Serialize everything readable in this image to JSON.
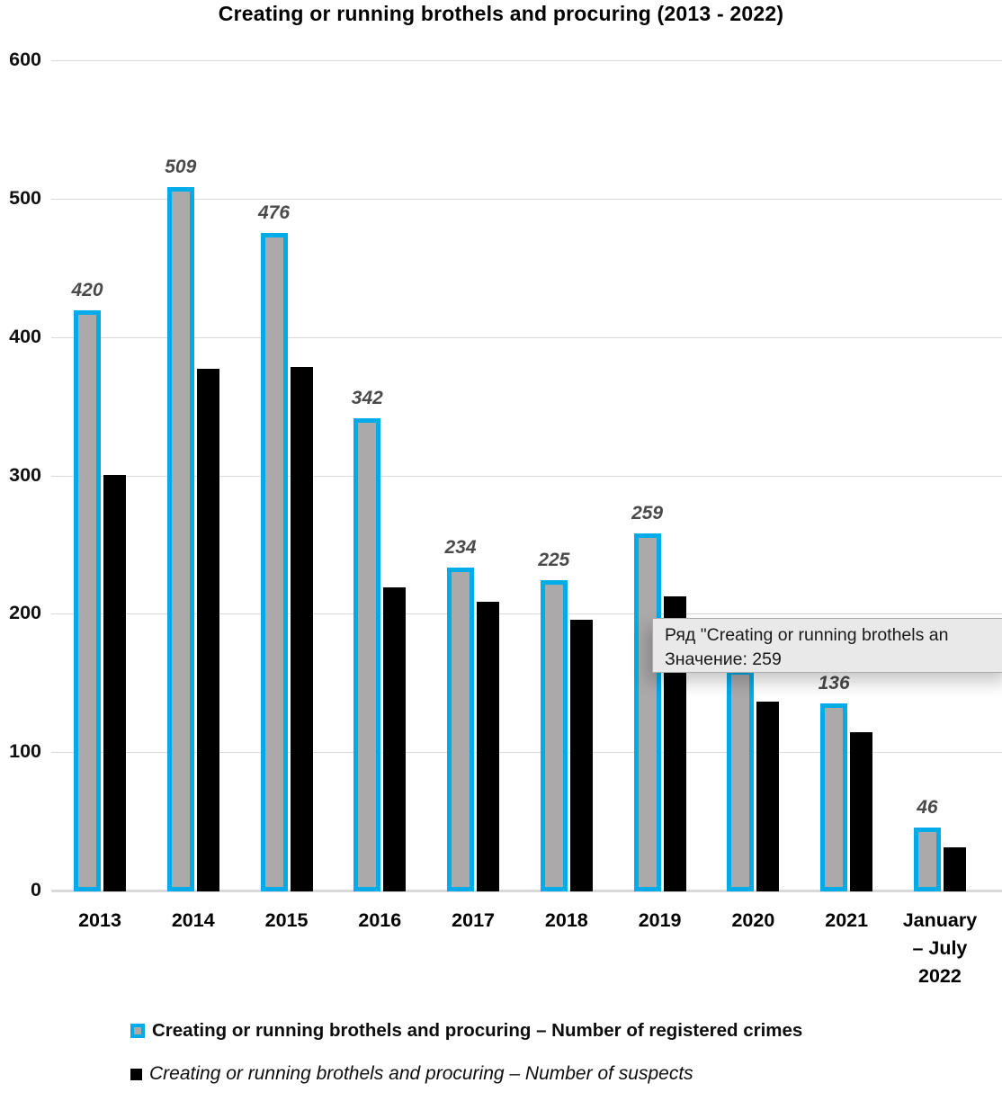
{
  "chart_data": {
    "type": "bar",
    "title": "Creating or running brothels and procuring (2013 - 2022)",
    "categories": [
      "2013",
      "2014",
      "2015",
      "2016",
      "2017",
      "2018",
      "2019",
      "2020",
      "2021",
      "January – July 2022"
    ],
    "xtick_labels": [
      "2013",
      "2014",
      "2015",
      "2016",
      "2017",
      "2018",
      "2019",
      "2020",
      "2021",
      "January\n– July\n2022"
    ],
    "series": [
      {
        "name": "Creating or running brothels and procuring – Number of registered crimes",
        "key": "registered-crimes",
        "values": [
          420,
          509,
          476,
          342,
          234,
          225,
          259,
          160,
          136,
          46
        ],
        "data_labels": [
          "420",
          "509",
          "476",
          "342",
          "234",
          "225",
          "259",
          null,
          "136",
          "46"
        ],
        "fill_color": "#aca9aa",
        "border_color": "#00ace8",
        "note": "2020 bar top and its data label are hidden behind the tooltip; 160 is estimated from the visible bar"
      },
      {
        "name": "Creating or running brothels and procuring – Number of suspects",
        "key": "suspects",
        "values": [
          301,
          378,
          379,
          220,
          209,
          196,
          213,
          137,
          115,
          32
        ],
        "data_labels": [
          null,
          null,
          null,
          null,
          null,
          null,
          null,
          null,
          null,
          null
        ],
        "fill_color": "#000000"
      }
    ],
    "ylim": [
      0,
      600
    ],
    "yticks": [
      0,
      100,
      200,
      300,
      400,
      500,
      600
    ],
    "grid": "horizontal gridlines on",
    "legend_position": "bottom"
  },
  "tooltip": {
    "line1": "Ряд \"Creating or running brothels an",
    "line2": "Значение: 259"
  },
  "colors": {
    "registered_fill": "#aca9aa",
    "registered_border": "#00ace8",
    "suspects_fill": "#000000",
    "gridline": "#d9d9d9",
    "data_label": "#4a4a4a",
    "tooltip_bg": "#e9e9e9",
    "tooltip_border": "#ababab"
  }
}
